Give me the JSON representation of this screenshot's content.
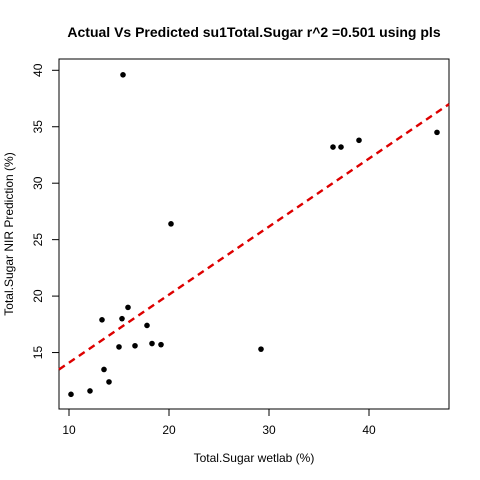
{
  "chart_data": {
    "type": "scatter",
    "title": "Actual Vs Predicted su1Total.Sugar r^2 =0.501 using pls",
    "xlabel": "Total.Sugar wetlab (%)",
    "ylabel": "Total.Sugar NIR Prediction (%)",
    "xlim": [
      9,
      48
    ],
    "ylim": [
      10,
      41
    ],
    "x_ticks": [
      10,
      20,
      30,
      40
    ],
    "y_ticks": [
      15,
      20,
      25,
      30,
      35,
      40
    ],
    "grid": false,
    "legend": "none",
    "points": [
      {
        "x": 10.2,
        "y": 11.3
      },
      {
        "x": 12.1,
        "y": 11.6
      },
      {
        "x": 13.3,
        "y": 17.9
      },
      {
        "x": 13.5,
        "y": 13.5
      },
      {
        "x": 14.0,
        "y": 12.4
      },
      {
        "x": 15.0,
        "y": 15.5
      },
      {
        "x": 15.3,
        "y": 18.0
      },
      {
        "x": 15.4,
        "y": 39.6
      },
      {
        "x": 15.9,
        "y": 19.0
      },
      {
        "x": 16.6,
        "y": 15.6
      },
      {
        "x": 17.8,
        "y": 17.4
      },
      {
        "x": 18.3,
        "y": 15.8
      },
      {
        "x": 19.2,
        "y": 15.7
      },
      {
        "x": 20.2,
        "y": 26.4
      },
      {
        "x": 29.2,
        "y": 15.3
      },
      {
        "x": 36.4,
        "y": 33.2
      },
      {
        "x": 37.2,
        "y": 33.2
      },
      {
        "x": 39.0,
        "y": 33.8
      },
      {
        "x": 46.8,
        "y": 34.5
      }
    ],
    "fit_line": {
      "x": [
        9,
        48
      ],
      "y": [
        13.5,
        37.0
      ],
      "color": "#dd0000",
      "style": "dashed"
    },
    "point_color": "#000000"
  }
}
